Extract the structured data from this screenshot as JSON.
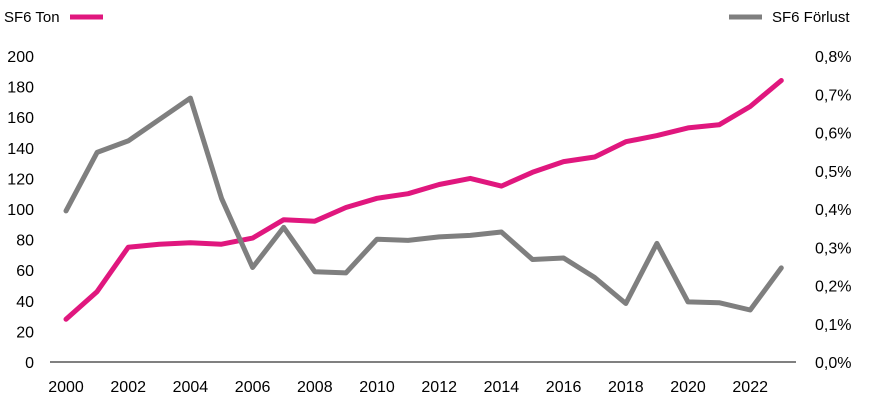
{
  "chart_data": {
    "type": "line",
    "x": [
      2000,
      2001,
      2002,
      2003,
      2004,
      2005,
      2006,
      2007,
      2008,
      2009,
      2010,
      2011,
      2012,
      2013,
      2014,
      2015,
      2016,
      2017,
      2018,
      2019,
      2020,
      2021,
      2022,
      2023
    ],
    "x_tick_labels": [
      "2000",
      "2002",
      "2004",
      "2006",
      "2008",
      "2010",
      "2012",
      "2014",
      "2016",
      "2018",
      "2020",
      "2022"
    ],
    "y_left_tick_labels": [
      "0",
      "20",
      "40",
      "60",
      "80",
      "100",
      "120",
      "140",
      "160",
      "180",
      "200"
    ],
    "y_right_tick_labels": [
      "0,0%",
      "0,1%",
      "0,2%",
      "0,3%",
      "0,4%",
      "0,5%",
      "0,6%",
      "0,7%",
      "0,8%"
    ],
    "ylim_left": [
      0,
      200
    ],
    "ylim_right": [
      0,
      0.8
    ],
    "grid": false,
    "legend_placement": "top",
    "series": [
      {
        "name": "SF6 Ton",
        "axis": "left",
        "color": "#E0177E",
        "values": [
          28,
          46,
          75,
          77,
          78,
          77,
          81,
          93,
          92,
          101,
          107,
          110,
          116,
          120,
          115,
          124,
          131,
          134,
          144,
          148,
          153,
          155,
          167,
          184
        ]
      },
      {
        "name": "SF6 Förlust",
        "axis": "right",
        "color": "#7F7F7F",
        "values": [
          0.395,
          0.548,
          0.578,
          0.634,
          0.69,
          0.428,
          0.247,
          0.352,
          0.236,
          0.233,
          0.321,
          0.318,
          0.327,
          0.331,
          0.34,
          0.268,
          0.272,
          0.221,
          0.153,
          0.31,
          0.157,
          0.155,
          0.136,
          0.246
        ]
      }
    ]
  }
}
